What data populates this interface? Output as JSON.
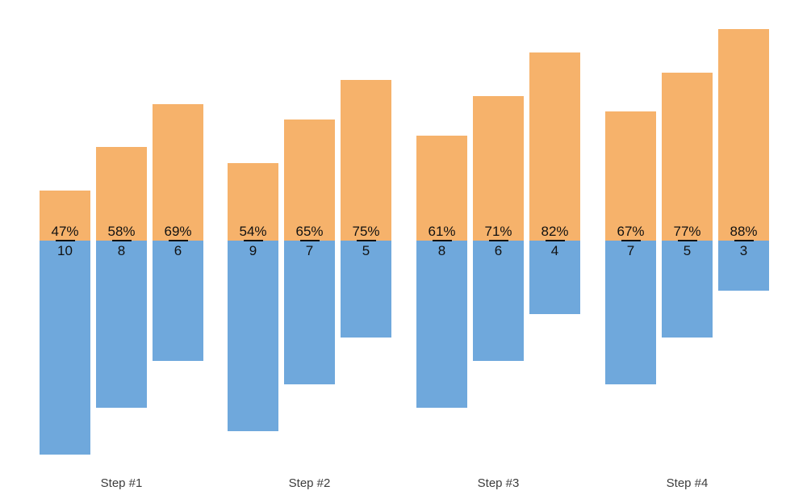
{
  "chart_data": {
    "type": "bar",
    "subtype": "diverging-grouped",
    "title": "",
    "legend": "none",
    "background": "#FFFFFF",
    "categories": [
      "Step #1",
      "Step #2",
      "Step #3",
      "Step #4"
    ],
    "groups": [
      {
        "label": "Step #1",
        "bars": [
          {
            "percent": 47,
            "percent_label": "47%",
            "count": 10,
            "count_label": "10"
          },
          {
            "percent": 58,
            "percent_label": "58%",
            "count": 8,
            "count_label": "8"
          },
          {
            "percent": 69,
            "percent_label": "69%",
            "count": 6,
            "count_label": "6"
          }
        ]
      },
      {
        "label": "Step #2",
        "bars": [
          {
            "percent": 54,
            "percent_label": "54%",
            "count": 9,
            "count_label": "9"
          },
          {
            "percent": 65,
            "percent_label": "65%",
            "count": 7,
            "count_label": "7"
          },
          {
            "percent": 75,
            "percent_label": "75%",
            "count": 5,
            "count_label": "5"
          }
        ]
      },
      {
        "label": "Step #3",
        "bars": [
          {
            "percent": 61,
            "percent_label": "61%",
            "count": 8,
            "count_label": "8"
          },
          {
            "percent": 71,
            "percent_label": "71%",
            "count": 6,
            "count_label": "6"
          },
          {
            "percent": 82,
            "percent_label": "82%",
            "count": 4,
            "count_label": "4"
          }
        ]
      },
      {
        "label": "Step #4",
        "bars": [
          {
            "percent": 67,
            "percent_label": "67%",
            "count": 7,
            "count_label": "7"
          },
          {
            "percent": 77,
            "percent_label": "77%",
            "count": 5,
            "count_label": "5"
          },
          {
            "percent": 88,
            "percent_label": "88%",
            "count": 3,
            "count_label": "3"
          }
        ]
      }
    ],
    "series": [
      {
        "name": "above-baseline-percent",
        "color": "#F6B26B"
      },
      {
        "name": "below-baseline-count",
        "color": "#6FA8DC"
      }
    ],
    "colors": {
      "above_bar": "#F6B26B",
      "below_bar": "#6FA8DC",
      "annotation_text": "#111111",
      "fraction_bar": "#111111",
      "category_label": "#3D3D3D"
    },
    "annotation_format": "percent over fraction bar over count"
  }
}
